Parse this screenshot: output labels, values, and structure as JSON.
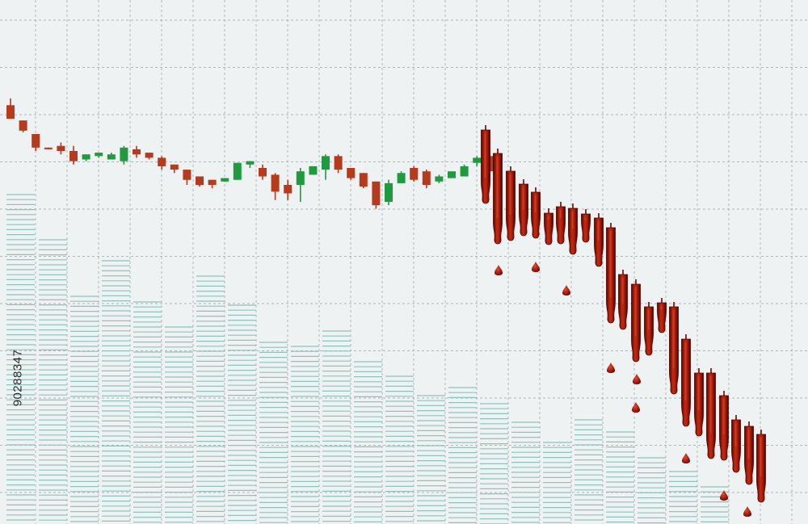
{
  "stock_id": "90288347",
  "colors": {
    "background": "#eef2f3",
    "grid": "#9aa3a6",
    "volume": "#8fc2bd",
    "bullish": "#1f9a3f",
    "bearish": "#b53a1e",
    "blood": "#8c0f06"
  },
  "chart_data": {
    "type": "candlestick",
    "grid": true,
    "ylim": [
      0,
      100
    ],
    "candles": [
      {
        "o": 87,
        "h": 91,
        "l": 79,
        "c": 79
      },
      {
        "o": 78,
        "h": 78,
        "l": 71,
        "c": 72
      },
      {
        "o": 70,
        "h": 70,
        "l": 60,
        "c": 62
      },
      {
        "o": 62,
        "h": 62,
        "l": 61,
        "c": 61
      },
      {
        "o": 63,
        "h": 65,
        "l": 58,
        "c": 60
      },
      {
        "o": 60,
        "h": 63,
        "l": 52,
        "c": 54
      },
      {
        "o": 55,
        "h": 58,
        "l": 54,
        "c": 58
      },
      {
        "o": 57,
        "h": 59,
        "l": 56,
        "c": 59
      },
      {
        "o": 55,
        "h": 59,
        "l": 55,
        "c": 58
      },
      {
        "o": 54,
        "h": 63,
        "l": 52,
        "c": 62
      },
      {
        "o": 61,
        "h": 63,
        "l": 56,
        "c": 58
      },
      {
        "o": 59,
        "h": 59,
        "l": 55,
        "c": 56
      },
      {
        "o": 56,
        "h": 57,
        "l": 49,
        "c": 51
      },
      {
        "o": 52,
        "h": 52,
        "l": 47,
        "c": 49
      },
      {
        "o": 49,
        "h": 49,
        "l": 40,
        "c": 43
      },
      {
        "o": 45,
        "h": 45,
        "l": 39,
        "c": 40
      },
      {
        "o": 43,
        "h": 43,
        "l": 38,
        "c": 40
      },
      {
        "o": 42,
        "h": 44,
        "l": 42,
        "c": 44
      },
      {
        "o": 43,
        "h": 53,
        "l": 43,
        "c": 53
      },
      {
        "o": 52,
        "h": 54,
        "l": 50,
        "c": 54
      },
      {
        "o": 50,
        "h": 52,
        "l": 43,
        "c": 45
      },
      {
        "o": 46,
        "h": 47,
        "l": 31,
        "c": 36
      },
      {
        "o": 40,
        "h": 43,
        "l": 31,
        "c": 35
      },
      {
        "o": 40,
        "h": 50,
        "l": 30,
        "c": 48
      },
      {
        "o": 46,
        "h": 51,
        "l": 46,
        "c": 51
      },
      {
        "o": 49,
        "h": 58,
        "l": 43,
        "c": 57
      },
      {
        "o": 57,
        "h": 58,
        "l": 47,
        "c": 49
      },
      {
        "o": 50,
        "h": 50,
        "l": 43,
        "c": 44
      },
      {
        "o": 47,
        "h": 47,
        "l": 38,
        "c": 39
      },
      {
        "o": 42,
        "h": 42,
        "l": 26,
        "c": 28
      },
      {
        "o": 30,
        "h": 43,
        "l": 28,
        "c": 41
      },
      {
        "o": 41,
        "h": 48,
        "l": 41,
        "c": 47
      },
      {
        "o": 50,
        "h": 51,
        "l": 42,
        "c": 43
      },
      {
        "o": 48,
        "h": 49,
        "l": 38,
        "c": 40
      },
      {
        "o": 42,
        "h": 46,
        "l": 41,
        "c": 45
      },
      {
        "o": 44,
        "h": 48,
        "l": 44,
        "c": 48
      },
      {
        "o": 45,
        "h": 52,
        "l": 45,
        "c": 51
      },
      {
        "o": 53,
        "h": 57,
        "l": 51,
        "c": 56
      },
      {
        "o": 57,
        "h": 58,
        "l": 45,
        "c": 48
      }
    ],
    "blood_candles": [
      {
        "x": 601,
        "top": 161,
        "bottom": 252,
        "drip": 252
      },
      {
        "x": 616,
        "top": 190,
        "bottom": 302,
        "drip": 302
      },
      {
        "x": 632,
        "top": 212,
        "bottom": 298,
        "drip": 298
      },
      {
        "x": 648,
        "top": 228,
        "bottom": 292,
        "drip": 292
      },
      {
        "x": 663,
        "top": 238,
        "bottom": 295,
        "drip": 295
      },
      {
        "x": 679,
        "top": 264,
        "bottom": 303,
        "drip": 303
      },
      {
        "x": 694,
        "top": 256,
        "bottom": 302,
        "drip": 302
      },
      {
        "x": 709,
        "top": 258,
        "bottom": 315,
        "drip": 315
      },
      {
        "x": 725,
        "top": 265,
        "bottom": 300,
        "drip": 300
      },
      {
        "x": 741,
        "top": 270,
        "bottom": 330,
        "drip": 330
      },
      {
        "x": 756,
        "top": 282,
        "bottom": 400,
        "drip": 400
      },
      {
        "x": 771,
        "top": 340,
        "bottom": 408,
        "drip": 408
      },
      {
        "x": 787,
        "top": 352,
        "bottom": 448,
        "drip": 448
      },
      {
        "x": 803,
        "top": 380,
        "bottom": 440,
        "drip": 440
      },
      {
        "x": 819,
        "top": 375,
        "bottom": 412,
        "drip": 412
      },
      {
        "x": 834,
        "top": 380,
        "bottom": 488,
        "drip": 488
      },
      {
        "x": 849,
        "top": 420,
        "bottom": 528,
        "drip": 528
      },
      {
        "x": 865,
        "top": 462,
        "bottom": 540,
        "drip": 540
      },
      {
        "x": 880,
        "top": 462,
        "bottom": 568,
        "drip": 568
      },
      {
        "x": 896,
        "top": 490,
        "bottom": 570,
        "drip": 570
      },
      {
        "x": 911,
        "top": 520,
        "bottom": 585,
        "drip": 585
      },
      {
        "x": 927,
        "top": 528,
        "bottom": 600,
        "drip": 600
      },
      {
        "x": 942,
        "top": 538,
        "bottom": 622,
        "drip": 622
      }
    ],
    "drops": [
      {
        "x": 617,
        "y": 335
      },
      {
        "x": 663,
        "y": 331
      },
      {
        "x": 701,
        "y": 360
      },
      {
        "x": 756,
        "y": 456
      },
      {
        "x": 788,
        "y": 470
      },
      {
        "x": 787,
        "y": 505
      },
      {
        "x": 849,
        "y": 568
      },
      {
        "x": 896,
        "y": 614
      },
      {
        "x": 925,
        "y": 634
      }
    ],
    "volume": [
      {
        "x": 8,
        "w": 35,
        "top": 241
      },
      {
        "x": 48,
        "w": 35,
        "top": 297
      },
      {
        "x": 87,
        "w": 35,
        "top": 367
      },
      {
        "x": 126,
        "w": 35,
        "top": 323
      },
      {
        "x": 165,
        "w": 35,
        "top": 374
      },
      {
        "x": 204,
        "w": 35,
        "top": 405
      },
      {
        "x": 243,
        "w": 35,
        "top": 342
      },
      {
        "x": 282,
        "w": 35,
        "top": 378
      },
      {
        "x": 321,
        "w": 35,
        "top": 424
      },
      {
        "x": 360,
        "w": 35,
        "top": 429
      },
      {
        "x": 399,
        "w": 35,
        "top": 410
      },
      {
        "x": 438,
        "w": 35,
        "top": 448
      },
      {
        "x": 477,
        "w": 35,
        "top": 466
      },
      {
        "x": 516,
        "w": 35,
        "top": 490
      },
      {
        "x": 555,
        "w": 35,
        "top": 480
      },
      {
        "x": 594,
        "w": 35,
        "top": 500
      },
      {
        "x": 633,
        "w": 35,
        "top": 523
      },
      {
        "x": 672,
        "w": 35,
        "top": 548
      },
      {
        "x": 711,
        "w": 35,
        "top": 520
      },
      {
        "x": 750,
        "w": 35,
        "top": 535
      },
      {
        "x": 789,
        "w": 35,
        "top": 567
      },
      {
        "x": 828,
        "w": 35,
        "top": 584
      },
      {
        "x": 867,
        "w": 35,
        "top": 603
      }
    ]
  }
}
